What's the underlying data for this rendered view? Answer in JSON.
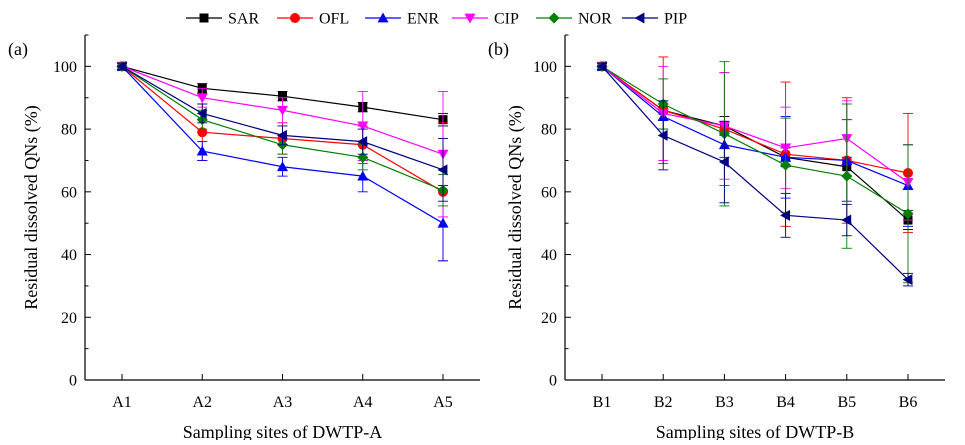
{
  "legend": {
    "position": "top-center",
    "entries": [
      {
        "name": "SAR",
        "color": "#000000",
        "marker": "square"
      },
      {
        "name": "OFL",
        "color": "#ff0000",
        "marker": "circle"
      },
      {
        "name": "ENR",
        "color": "#0000ff",
        "marker": "triangle-up"
      },
      {
        "name": "CIP",
        "color": "#ff00ff",
        "marker": "triangle-down"
      },
      {
        "name": "NOR",
        "color": "#008000",
        "marker": "diamond"
      },
      {
        "name": "PIP",
        "color": "#000080",
        "marker": "triangle-left"
      }
    ]
  },
  "chart_data": [
    {
      "type": "line",
      "panel_label": "(a)",
      "xlabel": "Sampling sites of DWTP-A",
      "ylabel": "Residual dissolved QNs (%)",
      "categories": [
        "A1",
        "A2",
        "A3",
        "A4",
        "A5"
      ],
      "ylim": [
        0,
        110
      ],
      "yticks": [
        0,
        20,
        40,
        60,
        80,
        100
      ],
      "grid": false,
      "series": [
        {
          "name": "SAR",
          "values": [
            100,
            93,
            90.5,
            87,
            83
          ],
          "errors": [
            1,
            1.5,
            1.5,
            1.5,
            2
          ]
        },
        {
          "name": "OFL",
          "values": [
            100,
            79,
            77,
            75,
            60
          ],
          "errors": [
            1,
            9,
            5,
            6,
            22
          ]
        },
        {
          "name": "ENR",
          "values": [
            100,
            73,
            68,
            65,
            50
          ],
          "errors": [
            1,
            3,
            3,
            5,
            12
          ]
        },
        {
          "name": "CIP",
          "values": [
            100,
            90,
            86,
            81,
            72
          ],
          "errors": [
            1,
            3,
            4,
            11,
            20
          ]
        },
        {
          "name": "NOR",
          "values": [
            100,
            83,
            75,
            71,
            60.5
          ],
          "errors": [
            1,
            3,
            3,
            4,
            5
          ]
        },
        {
          "name": "PIP",
          "values": [
            100,
            85,
            78,
            76,
            67
          ],
          "errors": [
            1,
            3,
            3,
            4,
            10
          ]
        }
      ]
    },
    {
      "type": "line",
      "panel_label": "(b)",
      "xlabel": "Sampling sites of DWTP-B",
      "ylabel": "Residual dissolved QNs (%)",
      "categories": [
        "B1",
        "B2",
        "B3",
        "B4",
        "B5",
        "B6"
      ],
      "ylim": [
        0,
        110
      ],
      "yticks": [
        0,
        20,
        40,
        60,
        80,
        100
      ],
      "grid": false,
      "series": [
        {
          "name": "SAR",
          "values": [
            100,
            86,
            81,
            71,
            68,
            51
          ],
          "errors": [
            1,
            3,
            3,
            3,
            3,
            3
          ]
        },
        {
          "name": "OFL",
          "values": [
            100,
            86,
            80,
            72,
            70,
            66
          ],
          "errors": [
            1,
            17,
            18,
            23,
            20,
            19
          ]
        },
        {
          "name": "ENR",
          "values": [
            100,
            84,
            75,
            71,
            70,
            62
          ],
          "errors": [
            1,
            4,
            4,
            13,
            13,
            13
          ]
        },
        {
          "name": "CIP",
          "values": [
            100,
            85,
            81,
            74,
            77,
            63
          ],
          "errors": [
            1,
            15,
            17,
            13,
            12,
            12
          ]
        },
        {
          "name": "NOR",
          "values": [
            100,
            88,
            78.5,
            68.5,
            65,
            53
          ],
          "errors": [
            1,
            8,
            23,
            15,
            23,
            22
          ]
        },
        {
          "name": "PIP",
          "values": [
            100,
            78,
            69.5,
            52.5,
            51,
            32
          ],
          "errors": [
            1,
            11,
            13,
            7,
            5,
            2
          ]
        }
      ]
    }
  ]
}
